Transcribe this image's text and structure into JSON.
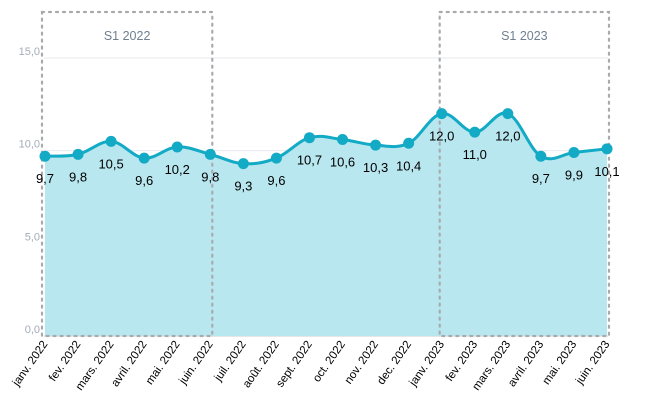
{
  "chart_data": {
    "type": "area",
    "categories": [
      "janv. 2022",
      "fev. 2022",
      "mars. 2022",
      "avril. 2022",
      "mai. 2022",
      "juin. 2022",
      "juil. 2022",
      "août. 2022",
      "sept. 2022",
      "oct. 2022",
      "nov. 2022",
      "dec. 2022",
      "janv. 2023",
      "fev. 2023",
      "mars. 2023",
      "avril. 2023",
      "mai. 2023",
      "juin. 2023"
    ],
    "values": [
      9.7,
      9.8,
      10.5,
      9.6,
      10.2,
      9.8,
      9.3,
      9.6,
      10.7,
      10.6,
      10.3,
      10.4,
      12.0,
      11.0,
      12.0,
      9.7,
      9.9,
      10.1
    ],
    "data_labels": [
      "9,7",
      "9,8",
      "10,5",
      "9,6",
      "10,2",
      "9,8",
      "9,3",
      "9,6",
      "10,7",
      "10,6",
      "10,3",
      "10,4",
      "12,0",
      "11,0",
      "12,0",
      "9,7",
      "9,9",
      "10,1"
    ],
    "ylim": [
      0,
      15
    ],
    "yticks": [
      0,
      5,
      10,
      15
    ],
    "ytick_labels": [
      "0,0",
      "5,0",
      "10,0",
      "15,0"
    ],
    "grid": true,
    "bands": [
      {
        "label": "S1 2022",
        "from": "janv. 2022",
        "to": "juin. 2022"
      },
      {
        "label": "S1 2023",
        "from": "janv. 2023",
        "to": "juin. 2023"
      }
    ],
    "colors": {
      "line": "#13aac5",
      "fill": "#b4e6ee",
      "marker": "#13aac5",
      "band_border": "#a8aaad",
      "grid": "#e6e9ee"
    }
  }
}
